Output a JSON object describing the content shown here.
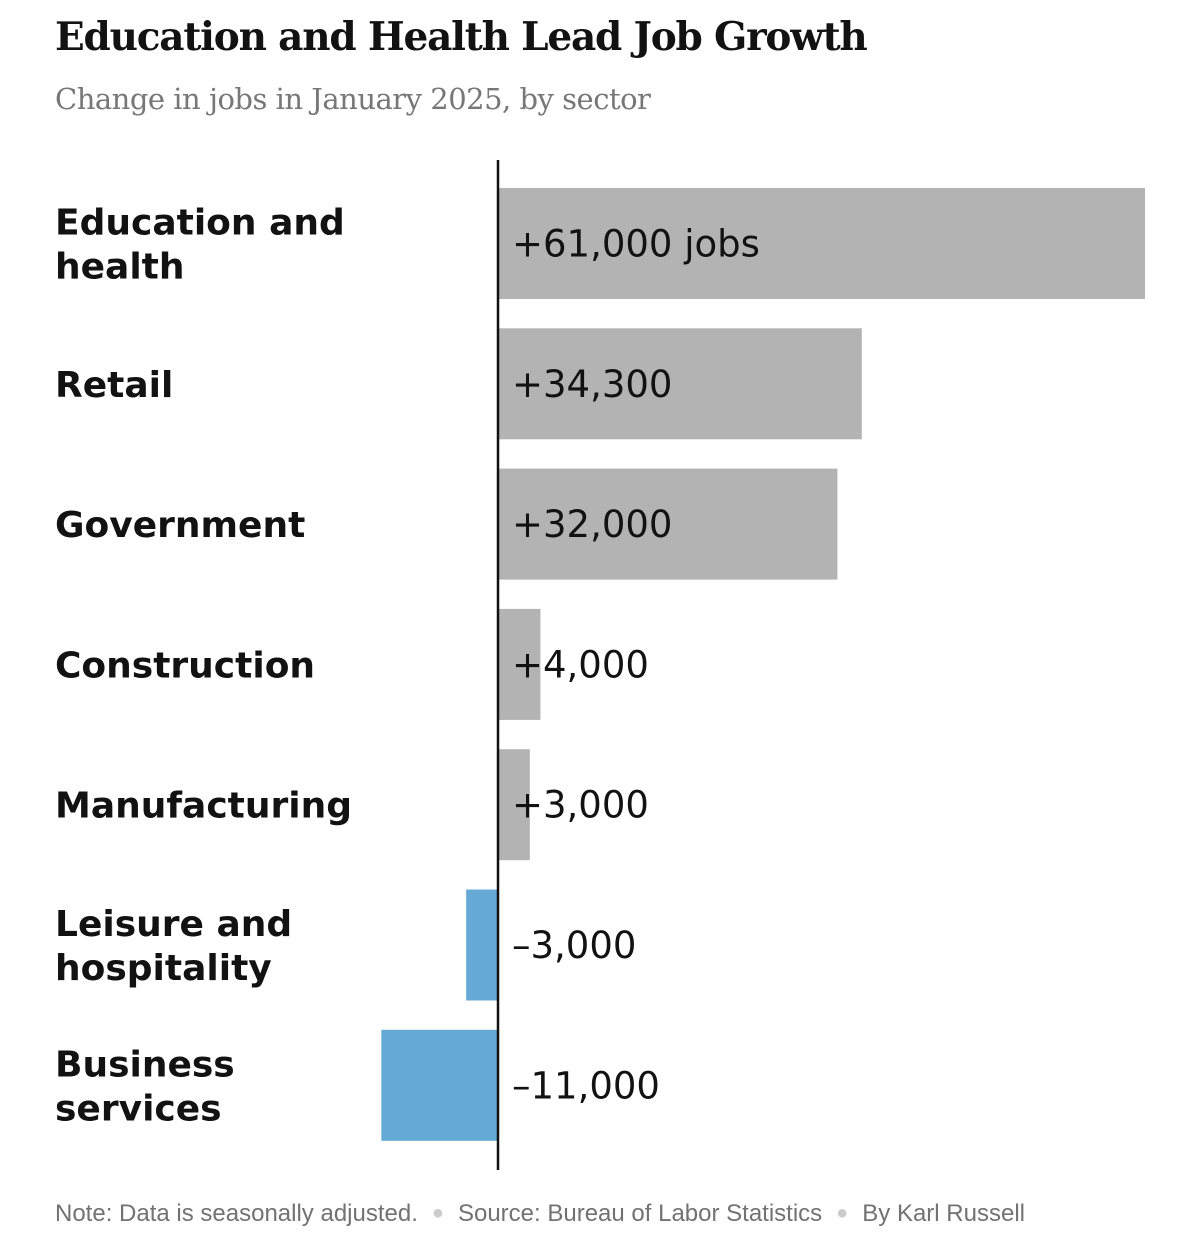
{
  "chart_data": {
    "type": "bar",
    "orientation": "horizontal",
    "title": "Education and Health Lead Job Growth",
    "subtitle": "Change in jobs in January 2025, by sector",
    "categories": [
      [
        "Education and",
        "health"
      ],
      [
        "Retail"
      ],
      [
        "Government"
      ],
      [
        "Construction"
      ],
      [
        "Manufacturing"
      ],
      [
        "Leisure and",
        "hospitality"
      ],
      [
        "Business",
        "services"
      ]
    ],
    "values": [
      61000,
      34300,
      32000,
      4000,
      3000,
      -3000,
      -11000
    ],
    "value_labels": [
      "+61,000 jobs",
      "+34,300",
      "+32,000",
      "+4,000",
      "+3,000",
      "–3,000",
      "–11,000"
    ],
    "xlim": [
      -11000,
      61000
    ],
    "colors": {
      "positive": "#b3b3b3",
      "negative": "#65a9d6",
      "axis": "#121212"
    }
  },
  "footer": {
    "note": "Note: Data is seasonally adjusted.",
    "source": "Source: Bureau of Labor Statistics",
    "byline": "By Karl Russell",
    "separator": "●"
  }
}
